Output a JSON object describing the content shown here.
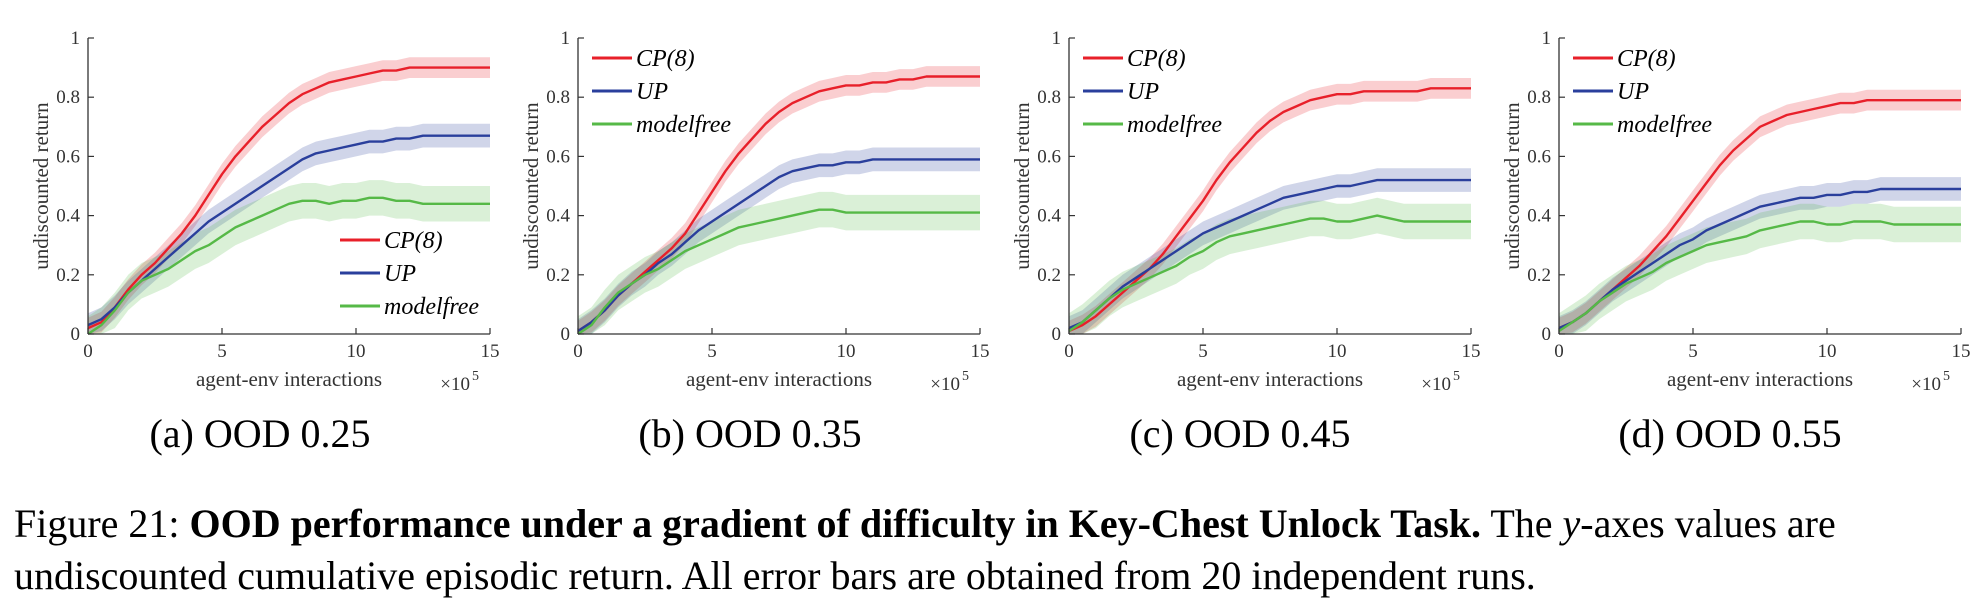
{
  "figure": {
    "caption_label": "Figure 21:",
    "caption_bold": "OOD performance under a gradient of difficulty in Key-Chest Unlock Task.",
    "caption_rest_1": "The ",
    "caption_italic": "y",
    "caption_rest_2": "-axes values are undiscounted cumulative episodic return. All error bars are obtained from 20 independent runs."
  },
  "colors": {
    "cp": "#e8202a",
    "up": "#2a3f9c",
    "modelfree": "#56b947"
  },
  "chart_data": [
    {
      "type": "line",
      "subcaption": "(a) OOD 0.25",
      "xlabel": "agent-env interactions",
      "ylabel": "undiscounted return",
      "x_multiplier": "×10",
      "x_multiplier_exp": "5",
      "xlim": [
        0,
        15
      ],
      "ylim": [
        0,
        1
      ],
      "xticks": [
        "0",
        "5",
        "10",
        "15"
      ],
      "yticks": [
        "0",
        "0.2",
        "0.4",
        "0.6",
        "0.8",
        "1"
      ],
      "legend_position": "bottom-right",
      "x": [
        0,
        0.5,
        1,
        1.5,
        2,
        2.5,
        3,
        3.5,
        4,
        4.5,
        5,
        5.5,
        6,
        6.5,
        7,
        7.5,
        8,
        8.5,
        9,
        9.5,
        10,
        10.5,
        11,
        11.5,
        12,
        12.5,
        13,
        13.5,
        14,
        14.5,
        15
      ],
      "series": [
        {
          "name": "CP(8)",
          "values": [
            0.02,
            0.04,
            0.09,
            0.15,
            0.2,
            0.24,
            0.29,
            0.34,
            0.4,
            0.47,
            0.54,
            0.6,
            0.65,
            0.7,
            0.74,
            0.78,
            0.81,
            0.83,
            0.85,
            0.86,
            0.87,
            0.88,
            0.89,
            0.89,
            0.9,
            0.9,
            0.9,
            0.9,
            0.9,
            0.9,
            0.9
          ],
          "band": 0.035
        },
        {
          "name": "UP",
          "values": [
            0.03,
            0.05,
            0.09,
            0.14,
            0.18,
            0.22,
            0.26,
            0.3,
            0.34,
            0.38,
            0.41,
            0.44,
            0.47,
            0.5,
            0.53,
            0.56,
            0.59,
            0.61,
            0.62,
            0.63,
            0.64,
            0.65,
            0.65,
            0.66,
            0.66,
            0.67,
            0.67,
            0.67,
            0.67,
            0.67,
            0.67
          ],
          "band": 0.04
        },
        {
          "name": "modelfree",
          "values": [
            0.0,
            0.03,
            0.08,
            0.14,
            0.18,
            0.2,
            0.22,
            0.25,
            0.28,
            0.3,
            0.33,
            0.36,
            0.38,
            0.4,
            0.42,
            0.44,
            0.45,
            0.45,
            0.44,
            0.45,
            0.45,
            0.46,
            0.46,
            0.45,
            0.45,
            0.44,
            0.44,
            0.44,
            0.44,
            0.44,
            0.44
          ],
          "band": 0.06
        }
      ]
    },
    {
      "type": "line",
      "subcaption": "(b) OOD 0.35",
      "xlabel": "agent-env interactions",
      "ylabel": "undiscounted return",
      "x_multiplier": "×10",
      "x_multiplier_exp": "5",
      "xlim": [
        0,
        15
      ],
      "ylim": [
        0,
        1
      ],
      "xticks": [
        "0",
        "5",
        "10",
        "15"
      ],
      "yticks": [
        "0",
        "0.2",
        "0.4",
        "0.6",
        "0.8",
        "1"
      ],
      "legend_position": "top-left",
      "x": [
        0,
        0.5,
        1,
        1.5,
        2,
        2.5,
        3,
        3.5,
        4,
        4.5,
        5,
        5.5,
        6,
        6.5,
        7,
        7.5,
        8,
        8.5,
        9,
        9.5,
        10,
        10.5,
        11,
        11.5,
        12,
        12.5,
        13,
        13.5,
        14,
        14.5,
        15
      ],
      "series": [
        {
          "name": "CP(8)",
          "values": [
            0.01,
            0.04,
            0.08,
            0.13,
            0.17,
            0.21,
            0.25,
            0.29,
            0.34,
            0.41,
            0.48,
            0.55,
            0.61,
            0.66,
            0.71,
            0.75,
            0.78,
            0.8,
            0.82,
            0.83,
            0.84,
            0.84,
            0.85,
            0.85,
            0.86,
            0.86,
            0.87,
            0.87,
            0.87,
            0.87,
            0.87
          ],
          "band": 0.035
        },
        {
          "name": "UP",
          "values": [
            0.01,
            0.04,
            0.08,
            0.13,
            0.17,
            0.2,
            0.24,
            0.27,
            0.31,
            0.35,
            0.38,
            0.41,
            0.44,
            0.47,
            0.5,
            0.53,
            0.55,
            0.56,
            0.57,
            0.57,
            0.58,
            0.58,
            0.59,
            0.59,
            0.59,
            0.59,
            0.59,
            0.59,
            0.59,
            0.59,
            0.59
          ],
          "band": 0.04
        },
        {
          "name": "modelfree",
          "values": [
            0.0,
            0.03,
            0.09,
            0.14,
            0.17,
            0.2,
            0.22,
            0.25,
            0.28,
            0.3,
            0.32,
            0.34,
            0.36,
            0.37,
            0.38,
            0.39,
            0.4,
            0.41,
            0.42,
            0.42,
            0.41,
            0.41,
            0.41,
            0.41,
            0.41,
            0.41,
            0.41,
            0.41,
            0.41,
            0.41,
            0.41
          ],
          "band": 0.06
        }
      ]
    },
    {
      "type": "line",
      "subcaption": "(c) OOD 0.45",
      "xlabel": "agent-env interactions",
      "ylabel": "undiscounted return",
      "x_multiplier": "×10",
      "x_multiplier_exp": "5",
      "xlim": [
        0,
        15
      ],
      "ylim": [
        0,
        1
      ],
      "xticks": [
        "0",
        "5",
        "10",
        "15"
      ],
      "yticks": [
        "0",
        "0.2",
        "0.4",
        "0.6",
        "0.8",
        "1"
      ],
      "legend_position": "top-left",
      "x": [
        0,
        0.5,
        1,
        1.5,
        2,
        2.5,
        3,
        3.5,
        4,
        4.5,
        5,
        5.5,
        6,
        6.5,
        7,
        7.5,
        8,
        8.5,
        9,
        9.5,
        10,
        10.5,
        11,
        11.5,
        12,
        12.5,
        13,
        13.5,
        14,
        14.5,
        15
      ],
      "series": [
        {
          "name": "CP(8)",
          "values": [
            0.01,
            0.03,
            0.06,
            0.1,
            0.14,
            0.18,
            0.22,
            0.27,
            0.33,
            0.39,
            0.45,
            0.52,
            0.58,
            0.63,
            0.68,
            0.72,
            0.75,
            0.77,
            0.79,
            0.8,
            0.81,
            0.81,
            0.82,
            0.82,
            0.82,
            0.82,
            0.82,
            0.83,
            0.83,
            0.83,
            0.83
          ],
          "band": 0.035
        },
        {
          "name": "UP",
          "values": [
            0.02,
            0.04,
            0.08,
            0.12,
            0.16,
            0.19,
            0.22,
            0.25,
            0.28,
            0.31,
            0.34,
            0.36,
            0.38,
            0.4,
            0.42,
            0.44,
            0.46,
            0.47,
            0.48,
            0.49,
            0.5,
            0.5,
            0.51,
            0.52,
            0.52,
            0.52,
            0.52,
            0.52,
            0.52,
            0.52,
            0.52
          ],
          "band": 0.04
        },
        {
          "name": "modelfree",
          "values": [
            0.01,
            0.04,
            0.08,
            0.12,
            0.15,
            0.17,
            0.19,
            0.21,
            0.23,
            0.26,
            0.28,
            0.31,
            0.33,
            0.34,
            0.35,
            0.36,
            0.37,
            0.38,
            0.39,
            0.39,
            0.38,
            0.38,
            0.39,
            0.4,
            0.39,
            0.38,
            0.38,
            0.38,
            0.38,
            0.38,
            0.38
          ],
          "band": 0.06
        }
      ]
    },
    {
      "type": "line",
      "subcaption": "(d) OOD 0.55",
      "xlabel": "agent-env interactions",
      "ylabel": "undiscounted return",
      "x_multiplier": "×10",
      "x_multiplier_exp": "5",
      "xlim": [
        0,
        15
      ],
      "ylim": [
        0,
        1
      ],
      "xticks": [
        "0",
        "5",
        "10",
        "15"
      ],
      "yticks": [
        "0",
        "0.2",
        "0.4",
        "0.6",
        "0.8",
        "1"
      ],
      "legend_position": "top-left",
      "x": [
        0,
        0.5,
        1,
        1.5,
        2,
        2.5,
        3,
        3.5,
        4,
        4.5,
        5,
        5.5,
        6,
        6.5,
        7,
        7.5,
        8,
        8.5,
        9,
        9.5,
        10,
        10.5,
        11,
        11.5,
        12,
        12.5,
        13,
        13.5,
        14,
        14.5,
        15
      ],
      "series": [
        {
          "name": "CP(8)",
          "values": [
            0.02,
            0.04,
            0.07,
            0.11,
            0.15,
            0.19,
            0.23,
            0.28,
            0.33,
            0.39,
            0.45,
            0.51,
            0.57,
            0.62,
            0.66,
            0.7,
            0.72,
            0.74,
            0.75,
            0.76,
            0.77,
            0.78,
            0.78,
            0.79,
            0.79,
            0.79,
            0.79,
            0.79,
            0.79,
            0.79,
            0.79
          ],
          "band": 0.035
        },
        {
          "name": "UP",
          "values": [
            0.02,
            0.04,
            0.07,
            0.11,
            0.15,
            0.18,
            0.21,
            0.24,
            0.27,
            0.3,
            0.32,
            0.35,
            0.37,
            0.39,
            0.41,
            0.43,
            0.44,
            0.45,
            0.46,
            0.46,
            0.47,
            0.47,
            0.48,
            0.48,
            0.49,
            0.49,
            0.49,
            0.49,
            0.49,
            0.49,
            0.49
          ],
          "band": 0.04
        },
        {
          "name": "modelfree",
          "values": [
            0.01,
            0.04,
            0.07,
            0.11,
            0.14,
            0.17,
            0.19,
            0.21,
            0.24,
            0.26,
            0.28,
            0.3,
            0.31,
            0.32,
            0.33,
            0.35,
            0.36,
            0.37,
            0.38,
            0.38,
            0.37,
            0.37,
            0.38,
            0.38,
            0.38,
            0.37,
            0.37,
            0.37,
            0.37,
            0.37,
            0.37
          ],
          "band": 0.06
        }
      ]
    }
  ]
}
